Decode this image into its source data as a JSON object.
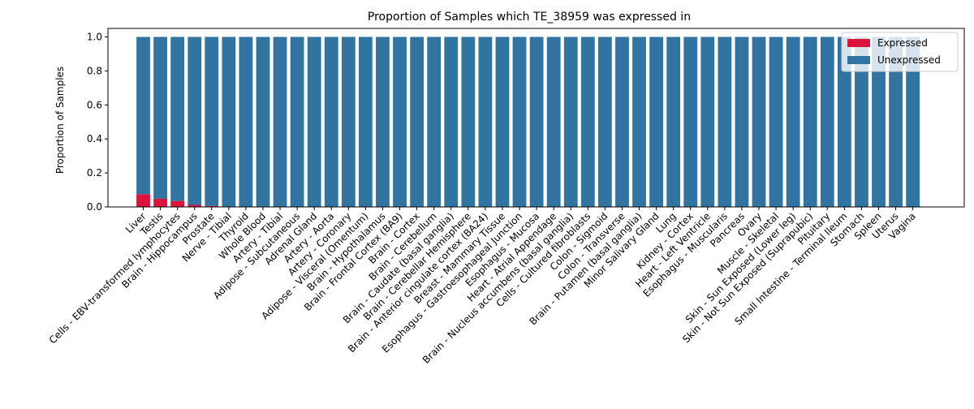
{
  "chart_data": {
    "type": "bar",
    "stacked": true,
    "title": "Proportion of Samples which TE_38959 was expressed in",
    "xlabel": "",
    "ylabel": "Proportion of Samples",
    "ylim": [
      0,
      1.05
    ],
    "yticks": [
      "0.0",
      "0.2",
      "0.4",
      "0.6",
      "0.8",
      "1.0"
    ],
    "ytick_values": [
      0,
      0.2,
      0.4,
      0.6,
      0.8,
      1.0
    ],
    "grid": false,
    "legend_position": "top-right",
    "categories": [
      "Liver",
      "Testis",
      "Cells - EBV-transformed lymphocytes",
      "Brain - Hippocampus",
      "Prostate",
      "Nerve - Tibial",
      "Thyroid",
      "Whole Blood",
      "Artery - Tibial",
      "Adipose - Subcutaneous",
      "Adrenal Gland",
      "Artery - Aorta",
      "Artery - Coronary",
      "Adipose - Visceral (Omentum)",
      "Brain - Hypothalamus",
      "Brain - Frontal Cortex (BA9)",
      "Brain - Cortex",
      "Brain - Cerebellum",
      "Brain - Caudate (basal ganglia)",
      "Brain - Cerebellar Hemisphere",
      "Brain - Anterior cingulate cortex (BA24)",
      "Breast - Mammary Tissue",
      "Esophagus - Gastroesophageal Junction",
      "Esophagus - Mucosa",
      "Heart - Atrial Appendage",
      "Brain - Nucleus accumbens (basal ganglia)",
      "Cells - Cultured fibroblasts",
      "Colon - Sigmoid",
      "Colon - Transverse",
      "Brain - Putamen (basal ganglia)",
      "Minor Salivary Gland",
      "Lung",
      "Kidney - Cortex",
      "Heart - Left Ventricle",
      "Esophagus - Muscularis",
      "Pancreas",
      "Ovary",
      "Muscle - Skeletal",
      "Skin - Sun Exposed (Lower leg)",
      "Skin - Not Sun Exposed (Suprapubic)",
      "Pituitary",
      "Small Intestine - Terminal Ileum",
      "Stomach",
      "Spleen",
      "Uterus",
      "Vagina"
    ],
    "series": [
      {
        "name": "Expressed",
        "color": "#dc143c",
        "values": [
          0.075,
          0.048,
          0.035,
          0.012,
          0.006,
          0,
          0,
          0,
          0,
          0,
          0,
          0,
          0,
          0,
          0,
          0,
          0,
          0,
          0,
          0,
          0,
          0,
          0,
          0,
          0,
          0,
          0,
          0,
          0,
          0,
          0,
          0,
          0,
          0,
          0,
          0,
          0,
          0,
          0,
          0,
          0,
          0,
          0,
          0,
          0,
          0
        ]
      },
      {
        "name": "Unexpressed",
        "color": "#3274a1",
        "values": [
          0.925,
          0.952,
          0.965,
          0.988,
          0.994,
          1,
          1,
          1,
          1,
          1,
          1,
          1,
          1,
          1,
          1,
          1,
          1,
          1,
          1,
          1,
          1,
          1,
          1,
          1,
          1,
          1,
          1,
          1,
          1,
          1,
          1,
          1,
          1,
          1,
          1,
          1,
          1,
          1,
          1,
          1,
          1,
          1,
          1,
          1,
          1,
          1
        ]
      }
    ]
  }
}
